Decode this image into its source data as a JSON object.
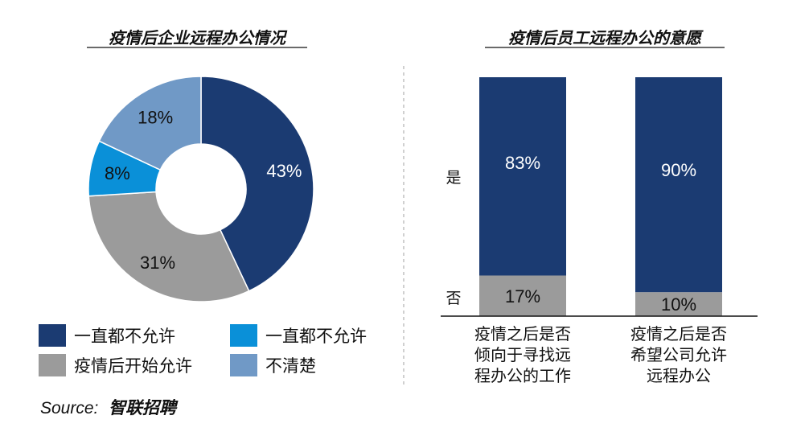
{
  "colors": {
    "navy": "#1b3b72",
    "blue": "#0a90d8",
    "gray": "#9b9b9b",
    "lightblue": "#7099c6"
  },
  "chart_data": [
    {
      "type": "pie",
      "title": "疫情后企业远程办公情况",
      "slices": [
        {
          "label": "一直都不允许",
          "value": 43,
          "display": "43%",
          "color": "#1b3b72"
        },
        {
          "label": "疫情后开始允许",
          "value": 31,
          "display": "31%",
          "color": "#9b9b9b"
        },
        {
          "label": "一直都不允许",
          "value": 8,
          "display": "8%",
          "color": "#0a90d8"
        },
        {
          "label": "不清楚",
          "value": 18,
          "display": "18%",
          "color": "#7099c6"
        }
      ],
      "legend": [
        {
          "label": "一直都不允许",
          "color": "#1b3b72"
        },
        {
          "label": "一直都不允许",
          "color": "#0a90d8"
        },
        {
          "label": "疫情后开始允许",
          "color": "#9b9b9b"
        },
        {
          "label": "不清楚",
          "color": "#7099c6"
        }
      ],
      "legend_position": "bottom"
    },
    {
      "type": "bar",
      "stacked": true,
      "percent": true,
      "title": "疫情后员工远程办公的意愿",
      "categories": [
        [
          "疫情之后是否",
          "倾向于寻找远",
          "程办公的工作"
        ],
        [
          "疫情之后是否",
          "希望公司允许",
          "远程办公"
        ]
      ],
      "series": [
        {
          "name": "否",
          "values": [
            17,
            10
          ],
          "labels": [
            "17%",
            "10%"
          ],
          "color": "#9b9b9b"
        },
        {
          "name": "是",
          "values": [
            83,
            90
          ],
          "labels": [
            "83%",
            "90%"
          ],
          "color": "#1b3b72"
        }
      ],
      "ylim": [
        0,
        100
      ]
    }
  ],
  "source": {
    "prefix": "Source:",
    "name": "智联招聘"
  }
}
